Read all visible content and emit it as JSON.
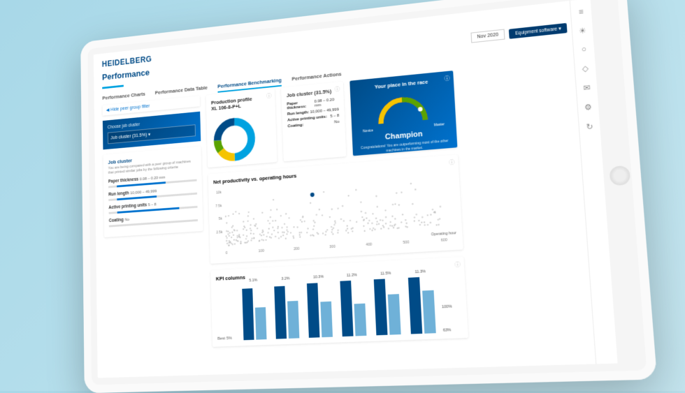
{
  "brand": "HEIDELBERG",
  "page_title": "Performance",
  "date_selector": "Nov 2020",
  "top_button": "Equipment software ▾",
  "tabs": [
    {
      "label": "Performance Charts",
      "active": false
    },
    {
      "label": "Performance Data Table",
      "active": false
    },
    {
      "label": "Performance Benchmarking",
      "active": true
    },
    {
      "label": "Performance Actions",
      "active": false
    }
  ],
  "hide_filter": "◀ Hide peer group filter",
  "cluster": {
    "label": "Choose job cluster",
    "value": "Job cluster (31.5%) ▾"
  },
  "filters": {
    "title": "Job cluster",
    "subtitle": "You are being compared with a peer group of machines that printed similar jobs by the following criteria:",
    "items": [
      {
        "label": "Paper thickness",
        "range": "0.08 – 0.20 mm",
        "fill": 55
      },
      {
        "label": "Run length",
        "range": "10,000 – 49,999",
        "fill": 45
      },
      {
        "label": "Active printing units",
        "range": "5 – 8",
        "fill": 70
      },
      {
        "label": "Coating",
        "range": "No",
        "fill": 0
      }
    ]
  },
  "production_profile": {
    "title": "Production profile",
    "subtitle": "XL 106-8-P+L",
    "donut": {
      "segments": [
        {
          "color": "#00a2e0",
          "pct": 50
        },
        {
          "color": "#f5c400",
          "pct": 15
        },
        {
          "color": "#5aa300",
          "pct": 10
        },
        {
          "color": "#004b87",
          "pct": 25
        }
      ]
    }
  },
  "job_cluster_card": {
    "title": "Job cluster (31.5%)",
    "rows": [
      {
        "k": "Paper thickness:",
        "v": "0.08 – 0.20 mm"
      },
      {
        "k": "Run length:",
        "v": "10,000 – 49,999"
      },
      {
        "k": "Active printing units:",
        "v": "5 – 8"
      },
      {
        "k": "Coating:",
        "v": "No"
      }
    ]
  },
  "champion": {
    "title": "Your place in the race",
    "label_left": "Novice",
    "label_right": "Master",
    "big": "Champion",
    "note": "Congratulations! You are outperforming most of the other machines in the market."
  },
  "scatter": {
    "title": "Net productivity vs. operating hours",
    "xlabel": "Operating hours",
    "ylabel": "Net productivity",
    "xlim": [
      0,
      600
    ],
    "ylim": [
      0,
      12
    ],
    "xticks": [
      0,
      100,
      200,
      300,
      400,
      500,
      600
    ],
    "yticks": [
      "2.5k",
      "5k",
      "7.5k",
      "10k"
    ],
    "highlight": {
      "x": 250,
      "y": 10,
      "color": "#004b87"
    },
    "point_color": "#b8b8b8",
    "n_points": 260
  },
  "kpi": {
    "title": "KPI columns",
    "left_label": "Best 5%",
    "groups": [
      {
        "val": "5.1%",
        "a": 92,
        "b": 58
      },
      {
        "val": "3.2%",
        "a": 94,
        "b": 66
      },
      {
        "val": "10.3%",
        "a": 96,
        "b": 62
      },
      {
        "val": "11.2%",
        "a": 97,
        "b": 56
      },
      {
        "val": "11.5%",
        "a": 98,
        "b": 70
      },
      {
        "val": "11.3%",
        "a": 97,
        "b": 74
      }
    ],
    "end_top": "100%",
    "end_bot": "63%",
    "color_a": "#004b87",
    "color_b": "#6fb1d8"
  },
  "side_icons": [
    "≡",
    "☀",
    "○",
    "◇",
    "✉",
    "⚙",
    "↻"
  ]
}
